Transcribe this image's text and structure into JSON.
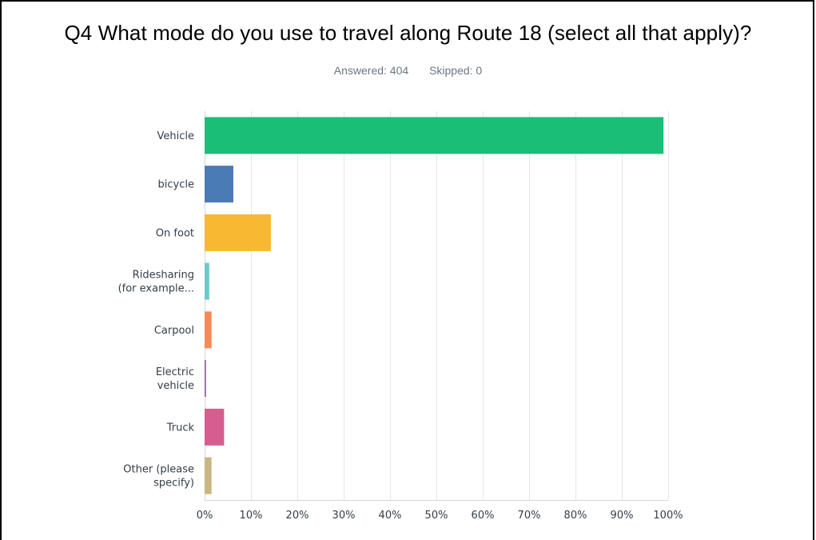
{
  "title": "Q4 What mode do you use to travel along Route 18 (select all that apply)?",
  "answered_label": "Answered: 404",
  "skipped_label": "Skipped: 0",
  "chart_data": {
    "type": "bar",
    "orientation": "horizontal",
    "title": "Q4 What mode do you use to travel along Route 18 (select all that apply)?",
    "categories": [
      [
        "Vehicle"
      ],
      [
        "bicycle"
      ],
      [
        "On foot"
      ],
      [
        "Ridesharing",
        "(for example..."
      ],
      [
        "Carpool"
      ],
      [
        "Electric",
        "vehicle"
      ],
      [
        "Truck"
      ],
      [
        "Other (please",
        "specify)"
      ]
    ],
    "values": [
      99,
      6.2,
      14.3,
      1.0,
      1.5,
      0.3,
      4.2,
      1.5
    ],
    "colors": [
      "#19bf76",
      "#4b7bb4",
      "#f8b832",
      "#6fc8c9",
      "#f78a5b",
      "#8c5f9a",
      "#d55e8f",
      "#c9b682"
    ],
    "xlim": [
      0,
      100
    ],
    "ticks": [
      0,
      10,
      20,
      30,
      40,
      50,
      60,
      70,
      80,
      90,
      100
    ],
    "tick_suffix": "%",
    "grid": true
  }
}
